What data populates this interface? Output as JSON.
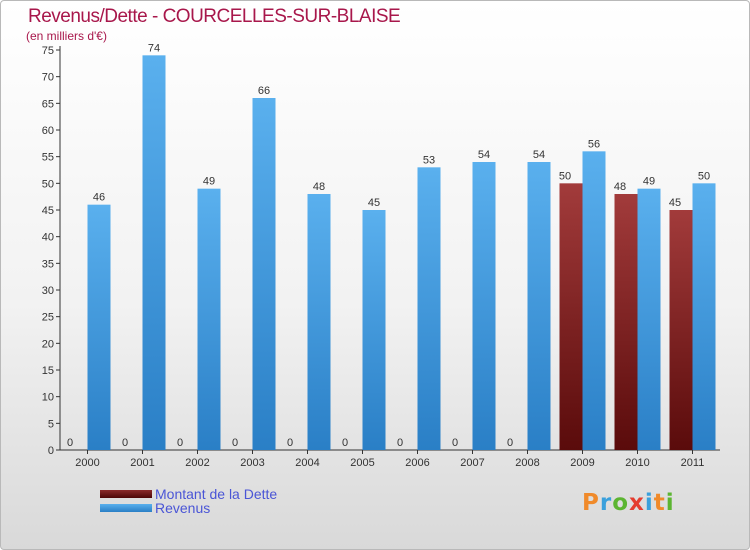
{
  "chart_data": {
    "type": "bar",
    "title": "Revenus/Dette - COURCELLES-SUR-BLAISE",
    "subtitle": "(en milliers d'€)",
    "categories": [
      "2000",
      "2001",
      "2002",
      "2003",
      "2004",
      "2005",
      "2006",
      "2007",
      "2008",
      "2009",
      "2010",
      "2011"
    ],
    "series": [
      {
        "name": "Montant de la Dette",
        "color": "#8b2b2b",
        "values": [
          0,
          0,
          0,
          0,
          0,
          0,
          0,
          0,
          0,
          50,
          48,
          45
        ]
      },
      {
        "name": "Revenus",
        "color": "#3f9be0",
        "values": [
          46,
          74,
          49,
          66,
          48,
          45,
          53,
          54,
          54,
          56,
          49,
          50
        ]
      }
    ],
    "ylim": [
      0,
      75
    ],
    "ytick_step": 5,
    "grid": false,
    "legend": "bottom-left"
  },
  "logo": {
    "letters": [
      "P",
      "r",
      "o",
      "x",
      "i",
      "t",
      "i"
    ],
    "colors": [
      "#f08a2a",
      "#3aa0dc",
      "#5cb531",
      "#e43d2f",
      "#3aa0dc",
      "#f08a2a",
      "#5cb531"
    ]
  }
}
